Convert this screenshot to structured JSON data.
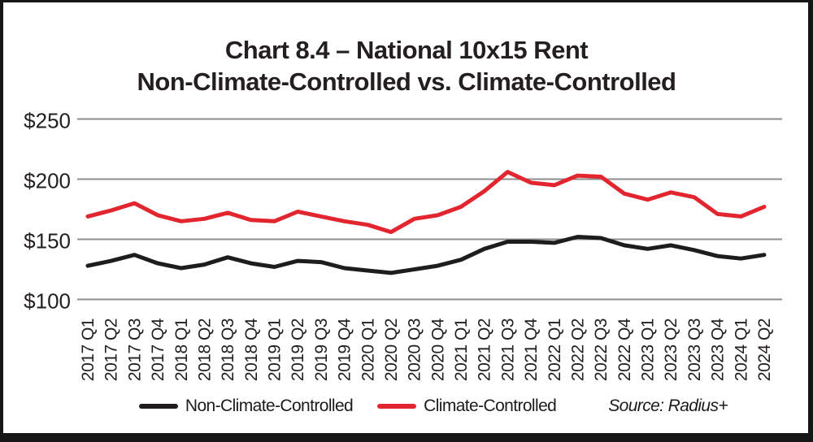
{
  "title": {
    "line1": "Chart 8.4 – National 10x15 Rent",
    "line2": "Non-Climate-Controlled vs. Climate-Controlled"
  },
  "source": "Source: Radius+",
  "legend": {
    "items": [
      {
        "label": "Non-Climate-Controlled",
        "color": "#1e1c1d"
      },
      {
        "label": "Climate-Controlled",
        "color": "#e2252e"
      }
    ]
  },
  "colors": {
    "non_climate_line": "#1e1c1d",
    "climate_line": "#e2252e",
    "gridline": "#8d8d8d",
    "text": "#231f20",
    "border": "#161616"
  },
  "chart_data": {
    "type": "line",
    "title": "Chart 8.4 – National 10x15 Rent Non-Climate-Controlled vs. Climate-Controlled",
    "categories": [
      "2017 Q1",
      "2017 Q2",
      "2017 Q3",
      "2017 Q4",
      "2018 Q1",
      "2018 Q2",
      "2018 Q3",
      "2018 Q4",
      "2019 Q1",
      "2019 Q2",
      "2019 Q3",
      "2019 Q4",
      "2020 Q1",
      "2020 Q2",
      "2020 Q3",
      "2020 Q4",
      "2021 Q1",
      "2021 Q2",
      "2021 Q3",
      "2021 Q4",
      "2022 Q1",
      "2022 Q2",
      "2022 Q3",
      "2022 Q4",
      "2023 Q1",
      "2023 Q2",
      "2023 Q3",
      "2023 Q4",
      "2024 Q1",
      "2024 Q2"
    ],
    "series": [
      {
        "name": "Non-Climate-Controlled",
        "color": "#1e1c1d",
        "values": [
          128,
          132,
          137,
          130,
          126,
          129,
          135,
          130,
          127,
          132,
          131,
          126,
          124,
          122,
          125,
          128,
          133,
          142,
          148,
          148,
          147,
          152,
          151,
          145,
          142,
          145,
          141,
          136,
          134,
          137
        ]
      },
      {
        "name": "Climate-Controlled",
        "color": "#e2252e",
        "values": [
          169,
          174,
          180,
          170,
          165,
          167,
          172,
          166,
          165,
          173,
          169,
          165,
          162,
          156,
          167,
          170,
          177,
          190,
          206,
          197,
          195,
          203,
          202,
          188,
          183,
          189,
          185,
          171,
          169,
          177
        ]
      }
    ],
    "ylim": [
      100,
      250
    ],
    "yticks": [
      100,
      150,
      200,
      250
    ],
    "ytick_labels": [
      "$100",
      "$150",
      "$200",
      "$250"
    ],
    "grid": true,
    "legend_position": "bottom",
    "source_note": "Source: Radius+"
  }
}
